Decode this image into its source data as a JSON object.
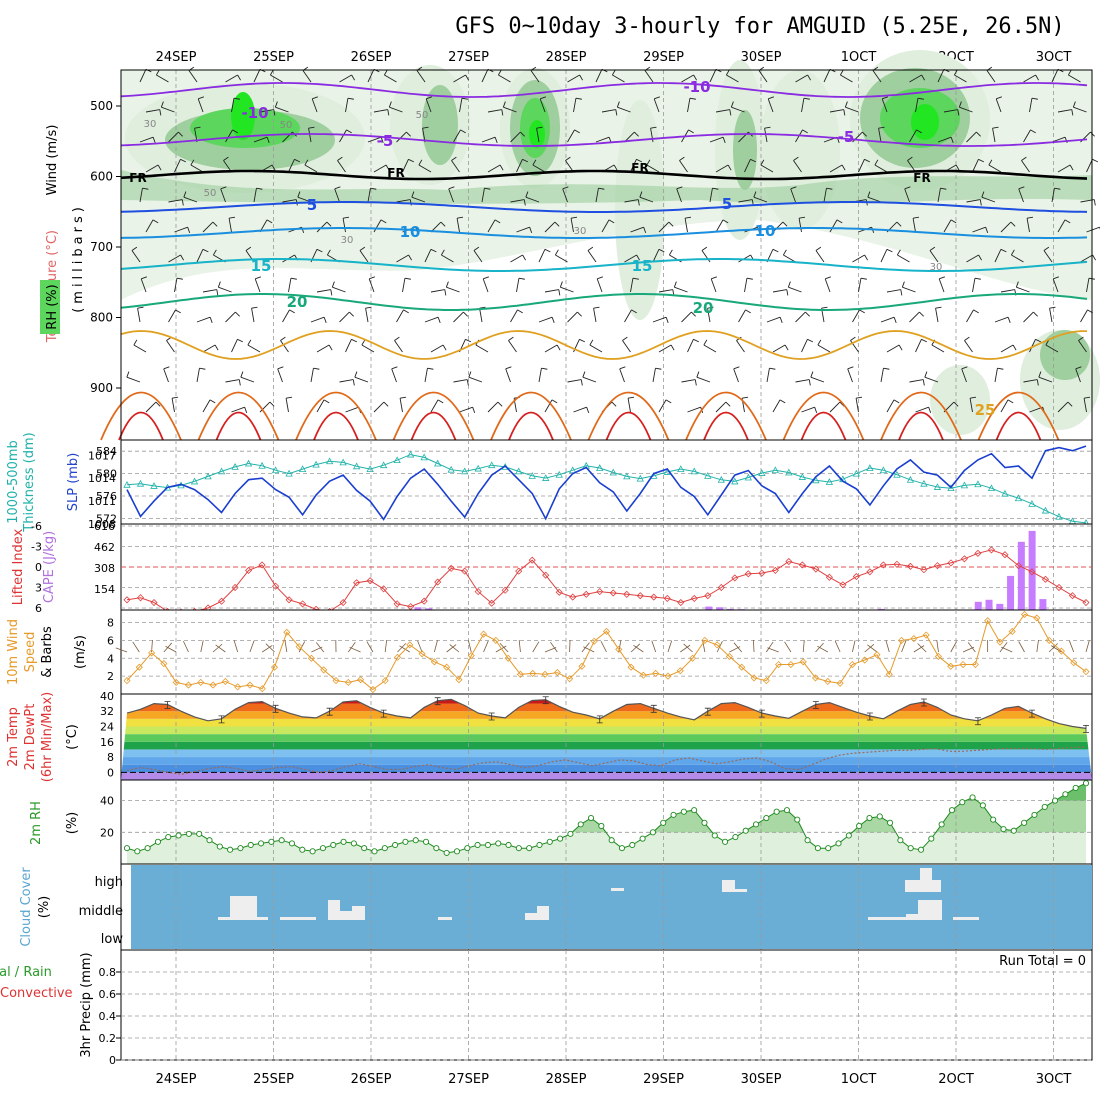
{
  "title": "GFS 0~10day 3-hourly for AMGUID (5.25E, 26.5N)",
  "date_labels": [
    "24SEP",
    "25SEP",
    "26SEP",
    "27SEP",
    "28SEP",
    "29SEP",
    "30SEP",
    "1OCT",
    "2OCT",
    "3OCT"
  ],
  "colors": {
    "grid": "#9a9a9a",
    "rh_light": "#dfeedd",
    "rh_mid": "#9fce9f",
    "rh_high": "#5cd65c",
    "rh_max": "#22e622",
    "cloud_bg": "#6aaed6",
    "cloud_fill": "#eeeeee"
  },
  "labels": {
    "upper_y_label_wind": "Wind (m/s)",
    "upper_y_label_temp": "Temperature (°C)",
    "upper_y_label_rh": "RH (%)",
    "upper_y_label_mb": "(millibars)",
    "thick_label_1": "1000-500mb",
    "thick_label_2": "Thickness (dm)",
    "slp_label": "SLP (mb)",
    "li_label": "Lifted Index",
    "cape_label": "CAPE (J/kg)",
    "wind10_label_1": "10m Wind",
    "wind10_label_2": "Speed",
    "wind10_label_3": "& Barbs",
    "wind10_units": "(m/s)",
    "temp2m_label_1": "2m Temp",
    "temp2m_label_2": "2m DewPt",
    "temp2m_label_3": "(6hr Min/Max)",
    "temp2m_units": "(°C)",
    "rh2m_label": "2m RH",
    "rh2m_units": "(%)",
    "cloud_label_1": "Cloud Cover",
    "cloud_label_2": "(%)",
    "precip_label_1": "tal / Rain",
    "precip_label_2": "Convective",
    "precip_label_3": "3hr Precip (mm)",
    "run_total": "Run Total = 0"
  },
  "chart_data": [
    {
      "panel": "upper-air",
      "type": "contour",
      "ylabel": "millibars",
      "y_ticks": [
        "500",
        "600",
        "700",
        "800",
        "900"
      ],
      "isotherm_labels": [
        "-10",
        "-10",
        "-5",
        "-5",
        "FR",
        "FR",
        "FR",
        "FR",
        "5",
        "5",
        "10",
        "10",
        "15",
        "15",
        "20",
        "20",
        "25"
      ],
      "rh_contour_labels": [
        "30",
        "50",
        "50",
        "50",
        "30",
        "30",
        "30"
      ]
    },
    {
      "panel": "thickness-slp",
      "type": "line",
      "left_axis": {
        "label": "1000-500mb Thickness (dm)",
        "ticks": [
          "584",
          "580",
          "576",
          "572"
        ],
        "range": [
          571,
          586
        ]
      },
      "right_axis": {
        "label": "SLP (mb)",
        "ticks": [
          "1017",
          "1014",
          "1011",
          "1008"
        ],
        "range": [
          1008,
          1019
        ]
      },
      "series": [
        {
          "name": "Thickness",
          "values": [
            578.0,
            578.2,
            577.8,
            577.5,
            577.9,
            578.6,
            579.5,
            580.4,
            581.2,
            581.8,
            581.4,
            580.6,
            580.0,
            580.8,
            581.6,
            582.2,
            582.0,
            581.3,
            580.8,
            581.5,
            582.4,
            583.4,
            582.9,
            581.8,
            580.7,
            580.4,
            580.9,
            581.5,
            581.2,
            580.4,
            579.6,
            579.2,
            579.8,
            580.6,
            581.4,
            581.0,
            580.2,
            579.5,
            579.1,
            579.6,
            580.3,
            580.8,
            580.4,
            579.6,
            578.9,
            578.6,
            579.3,
            580.1,
            580.6,
            580.2,
            579.4,
            578.8,
            578.5,
            579.0,
            580.0,
            581.0,
            580.6,
            579.8,
            578.9,
            578.2,
            577.6,
            577.4,
            577.9,
            578.1,
            577.4,
            576.4,
            575.6,
            574.6,
            573.4,
            572.3,
            571.5,
            571.2
          ]
        },
        {
          "name": "SLP",
          "values": [
            1012.5,
            1009.0,
            1011.0,
            1012.8,
            1013.2,
            1012.5,
            1011.2,
            1009.5,
            1012.0,
            1013.8,
            1014.0,
            1012.5,
            1011.5,
            1009.2,
            1011.8,
            1013.6,
            1014.4,
            1012.4,
            1011.0,
            1008.6,
            1011.6,
            1014.0,
            1015.2,
            1013.2,
            1011.0,
            1008.9,
            1012.0,
            1014.4,
            1015.6,
            1013.8,
            1012.0,
            1008.7,
            1012.6,
            1014.6,
            1015.4,
            1013.4,
            1012.2,
            1009.7,
            1012.0,
            1014.6,
            1015.2,
            1012.8,
            1011.6,
            1009.2,
            1011.8,
            1014.4,
            1015.0,
            1013.0,
            1012.0,
            1009.5,
            1012.0,
            1014.2,
            1015.6,
            1013.6,
            1012.6,
            1010.5,
            1013.0,
            1015.2,
            1016.4,
            1014.8,
            1014.4,
            1012.8,
            1015.0,
            1016.4,
            1017.2,
            1015.4,
            1015.6,
            1014.0,
            1017.6,
            1018.0,
            1017.6,
            1018.2
          ]
        }
      ]
    },
    {
      "panel": "lifted-index-cape",
      "type": "line+bar",
      "left_axis": {
        "label": "Lifted Index",
        "ticks": [
          "-6",
          "-3",
          "0",
          "3",
          "6"
        ],
        "range": [
          -6,
          6
        ]
      },
      "right_axis": {
        "label": "CAPE (J/kg)",
        "ticks": [
          "616",
          "462",
          "308",
          "154"
        ],
        "range": [
          0,
          616
        ]
      },
      "series": [
        {
          "name": "Lifted Index",
          "values": [
            4.8,
            4.5,
            5.2,
            6.5,
            6.6,
            6.5,
            6.0,
            5.0,
            3.0,
            0.5,
            -0.3,
            2.8,
            4.8,
            5.4,
            6.2,
            6.5,
            5.2,
            2.3,
            2.0,
            3.2,
            5.4,
            5.8,
            5.0,
            2.2,
            0.2,
            0.6,
            3.6,
            5.3,
            3.4,
            0.6,
            -1.0,
            1.2,
            3.7,
            4.4,
            4.0,
            3.6,
            3.8,
            4.0,
            4.2,
            4.4,
            4.6,
            5.2,
            4.6,
            4.2,
            3.0,
            1.6,
            1.0,
            0.9,
            0.5,
            -0.8,
            -0.3,
            0.3,
            1.5,
            2.6,
            1.4,
            0.7,
            -0.3,
            -0.4,
            -0.1,
            0.4,
            -0.2,
            -0.6,
            -1.2,
            -2.0,
            -2.5,
            -1.8,
            -0.2,
            0.7,
            1.8,
            3.0,
            4.2,
            5.2
          ]
        },
        {
          "name": "CAPE",
          "values": [
            0,
            0,
            0,
            0,
            0,
            0,
            0,
            0,
            0,
            0,
            0,
            0,
            0,
            0,
            0,
            0,
            0,
            0,
            0,
            0,
            0,
            0,
            0,
            0,
            0,
            0,
            0,
            20,
            12,
            0,
            0,
            0,
            0,
            0,
            0,
            0,
            0,
            0,
            0,
            0,
            0,
            0,
            0,
            0,
            0,
            0,
            0,
            0,
            0,
            0,
            0,
            0,
            0,
            0,
            25,
            20,
            8,
            6,
            0,
            0,
            0,
            0,
            0,
            0,
            0,
            0,
            0,
            0,
            0,
            0,
            8,
            0,
            0,
            0,
            0,
            0,
            0,
            0,
            0,
            60,
            75,
            45,
            250,
            500,
            580,
            80,
            0,
            0,
            0,
            0
          ]
        }
      ]
    },
    {
      "panel": "10m-wind",
      "type": "line",
      "ylabel": "(m/s)",
      "y_ticks": [
        "8",
        "6",
        "4",
        "2"
      ],
      "range": [
        0,
        9.4
      ],
      "series": [
        {
          "name": "10m Wind Speed",
          "values": [
            1.5,
            3.0,
            4.6,
            3.4,
            1.3,
            1.0,
            1.3,
            1.0,
            1.4,
            0.8,
            1.0,
            0.6,
            3.0,
            6.9,
            5.3,
            4.0,
            2.7,
            1.5,
            1.3,
            1.6,
            0.5,
            1.5,
            4.1,
            5.5,
            4.5,
            3.6,
            3.0,
            1.6,
            4.3,
            6.7,
            6.0,
            4.0,
            2.2,
            2.3,
            2.2,
            2.4,
            1.7,
            3.1,
            5.9,
            7.0,
            5.0,
            3.0,
            2.1,
            2.3,
            2.0,
            2.6,
            4.0,
            6.0,
            5.5,
            4.2,
            3.0,
            1.8,
            1.5,
            3.3,
            3.3,
            3.6,
            1.8,
            1.4,
            1.2,
            3.3,
            3.8,
            4.4,
            2.2,
            6.0,
            6.2,
            6.6,
            4.2,
            3.1,
            3.3,
            3.3,
            8.2,
            5.8,
            7.0,
            8.9,
            8.5,
            6.0,
            4.8,
            3.5,
            2.5
          ]
        }
      ]
    },
    {
      "panel": "2m-temp-dewpoint",
      "type": "area",
      "ylabel": "(°C)",
      "y_ticks": [
        "40",
        "32",
        "24",
        "16",
        "8",
        "0"
      ],
      "range": [
        -4,
        41
      ],
      "series": [
        {
          "name": "2m Temp",
          "values": [
            31,
            33,
            36,
            35.5,
            32,
            29,
            27,
            28,
            33,
            36.5,
            37,
            33.5,
            31,
            29,
            28.5,
            32,
            36.8,
            37.5,
            34,
            31,
            29.5,
            28.5,
            34,
            37.5,
            38.2,
            35,
            31,
            29.5,
            28.5,
            34,
            37.6,
            38.0,
            34.5,
            31.5,
            30,
            28,
            32,
            35.5,
            36,
            33.5,
            31,
            29,
            27.5,
            32,
            36,
            36.5,
            34,
            31,
            29.5,
            28.3,
            32,
            35.5,
            36.5,
            34,
            31.5,
            29.5,
            28,
            32,
            35.5,
            36.8,
            34,
            30,
            28,
            27,
            30,
            33.5,
            34.5,
            31,
            28,
            25.5,
            24,
            23
          ]
        },
        {
          "name": "2m DewPt",
          "values": [
            1,
            2.5,
            1.5,
            0,
            -1,
            0.5,
            2,
            3,
            2,
            0.5,
            1.5,
            2.5,
            3,
            1.5,
            0,
            1,
            3,
            4.5,
            3,
            1.5,
            1.5,
            3,
            4,
            2.5,
            1.5,
            3.5,
            5,
            5.5,
            4,
            2.5,
            3.5,
            5.5,
            6.5,
            5,
            3.5,
            5,
            6.5,
            6,
            4,
            3.5,
            6.5,
            7.5,
            6,
            4.5,
            5.5,
            7,
            7.5,
            5.5,
            2,
            1.5,
            4,
            7,
            9,
            10,
            10.5,
            11,
            11.5,
            11.5,
            12,
            12.5,
            11,
            11,
            11.5,
            12,
            12.5,
            12.5,
            12.5,
            12,
            12.5,
            13,
            13.5
          ]
        }
      ]
    },
    {
      "panel": "2m-rh",
      "type": "line",
      "ylabel": "(%)",
      "y_ticks": [
        "40",
        "20"
      ],
      "range": [
        0,
        53
      ],
      "series": [
        {
          "name": "2m RH",
          "values": [
            10,
            8,
            10,
            14,
            17,
            18,
            19,
            19,
            15,
            11,
            9,
            10,
            12,
            13,
            14,
            15,
            13,
            9,
            8,
            10,
            12,
            14,
            13,
            10,
            8,
            10,
            12,
            14,
            15,
            14,
            10,
            7,
            8,
            10,
            12,
            12,
            13,
            12,
            10,
            10,
            12,
            14,
            16,
            19,
            25,
            29,
            24,
            15,
            10,
            12,
            16,
            20,
            26,
            31,
            33,
            34,
            26,
            18,
            14,
            17,
            21,
            25,
            29,
            33,
            34,
            28,
            15,
            10,
            10,
            13,
            18,
            24,
            29,
            30,
            26,
            15,
            10,
            9,
            16,
            25,
            34,
            39,
            42,
            37,
            28,
            22,
            21,
            26,
            31,
            36,
            40,
            44,
            48,
            51
          ]
        }
      ]
    },
    {
      "panel": "cloud-cover",
      "type": "heatmap",
      "ylabel": "Cloud Cover (%)",
      "y_ticks": [
        "high",
        "middle",
        "low"
      ]
    },
    {
      "panel": "3hr-precip",
      "type": "bar",
      "ylabel": "3hr Precip (mm)",
      "y_ticks": [
        "0.8",
        "0.6",
        "0.4",
        "0.2",
        "0"
      ],
      "range": [
        0,
        1.0
      ],
      "values": []
    }
  ]
}
